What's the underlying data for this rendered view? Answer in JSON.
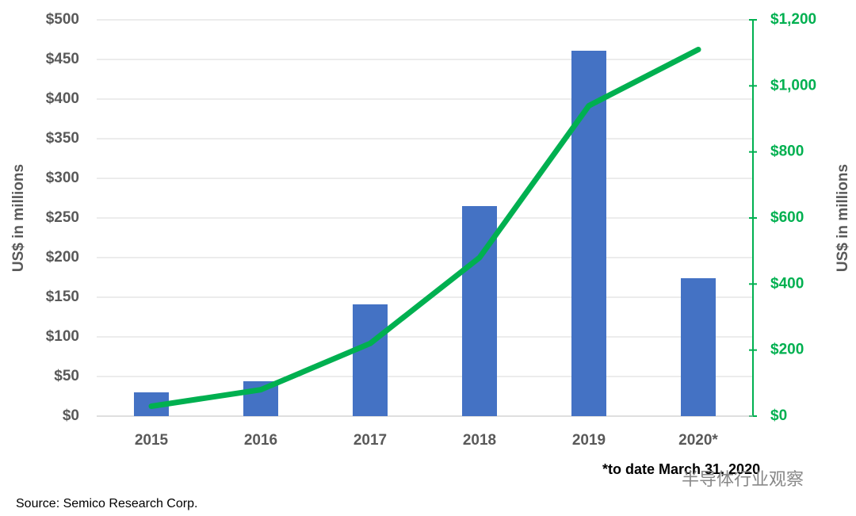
{
  "chart_data": {
    "type": "combo",
    "y_label": "US$ in millions",
    "y2_label": "US$ in millions",
    "annotation": "*to date March 31, 2020",
    "source": "Source:  Semico Research Corp.",
    "watermark": "半导体行业观察",
    "categories": [
      "2015",
      "2016",
      "2017",
      "2018",
      "2019",
      "2020*"
    ],
    "series": [
      {
        "type": "bar",
        "color": "#4472c4",
        "values": [
          30,
          44,
          141,
          265,
          461,
          174
        ]
      },
      {
        "type": "line",
        "axis": "y2",
        "color": "#00b050",
        "values": [
          30,
          80,
          220,
          480,
          940,
          1110
        ]
      }
    ],
    "ylim": [
      0,
      500
    ],
    "yticks": [
      {
        "value": 0,
        "label": "$0"
      },
      {
        "value": 50,
        "label": "$50"
      },
      {
        "value": 100,
        "label": "$100"
      },
      {
        "value": 150,
        "label": "$150"
      },
      {
        "value": 200,
        "label": "$200"
      },
      {
        "value": 250,
        "label": "$250"
      },
      {
        "value": 300,
        "label": "$300"
      },
      {
        "value": 350,
        "label": "$350"
      },
      {
        "value": 400,
        "label": "$400"
      },
      {
        "value": 450,
        "label": "$450"
      },
      {
        "value": 500,
        "label": "$500"
      }
    ],
    "y2lim": [
      0,
      1200
    ],
    "y2ticks": [
      {
        "value": 0,
        "label": "$0"
      },
      {
        "value": 200,
        "label": "$200"
      },
      {
        "value": 400,
        "label": "$400"
      },
      {
        "value": 600,
        "label": "$600"
      },
      {
        "value": 800,
        "label": "$800"
      },
      {
        "value": 1000,
        "label": "$1,000"
      },
      {
        "value": 1200,
        "label": "$1,200"
      }
    ],
    "grid": true,
    "y2_color": "#00b050"
  }
}
